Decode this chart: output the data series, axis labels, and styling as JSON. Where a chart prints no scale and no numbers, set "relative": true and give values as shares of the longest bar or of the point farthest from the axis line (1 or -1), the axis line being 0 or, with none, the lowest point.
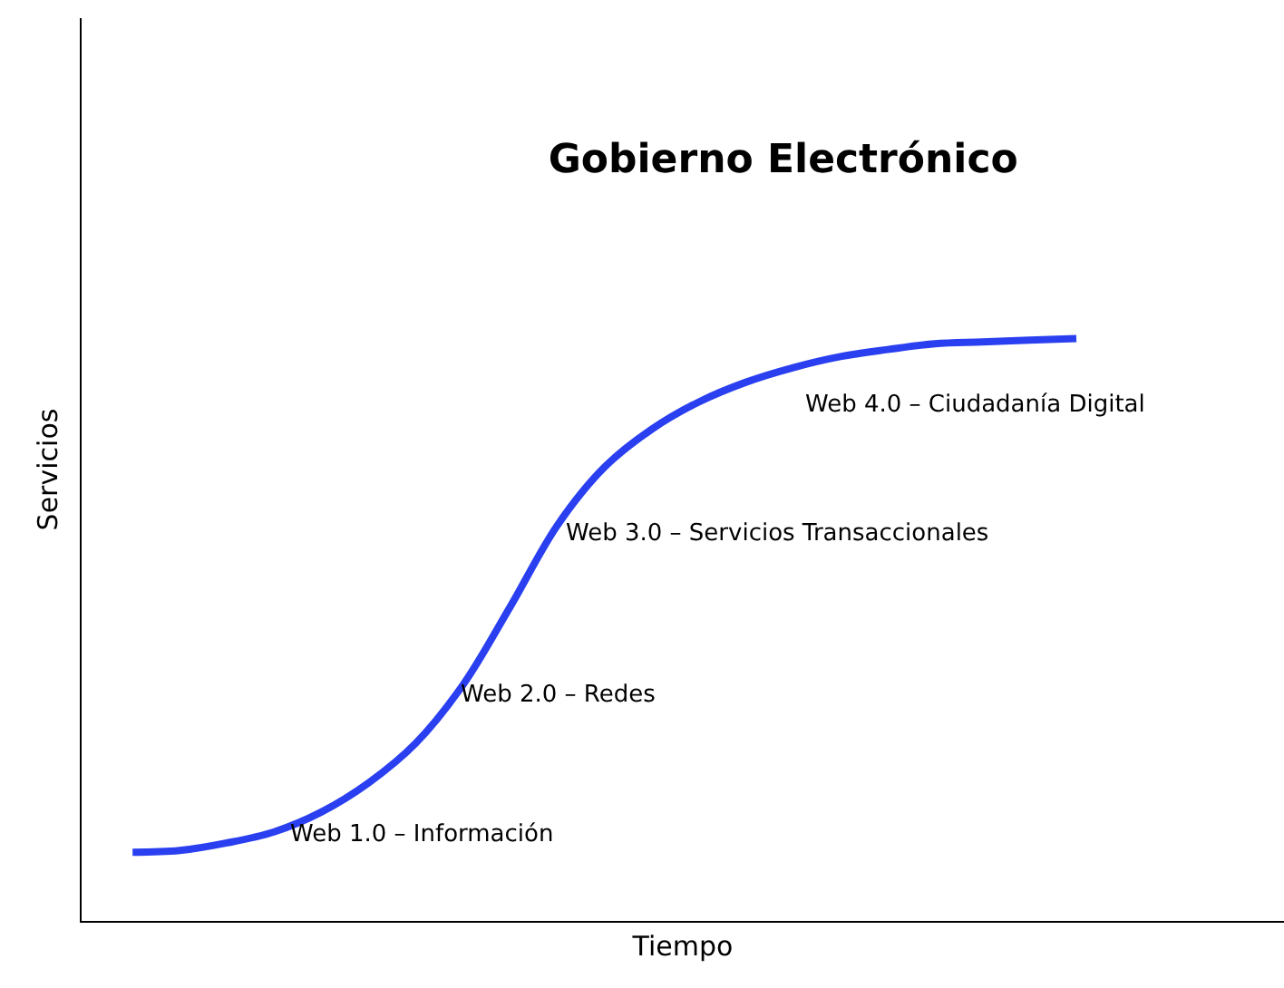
{
  "chart_data": {
    "type": "line",
    "title": "Gobierno Electrónico",
    "xlabel": "Tiempo",
    "ylabel": "Servicios",
    "relative": true,
    "categories": [
      null,
      null,
      null,
      null,
      null,
      null,
      null,
      null,
      null,
      null,
      null,
      null,
      null,
      null,
      null,
      null,
      null,
      null,
      null,
      null,
      null
    ],
    "series": [
      {
        "color": "#2a3ff0",
        "values": [
          0.118,
          0.121,
          0.134,
          0.153,
          0.187,
          0.237,
          0.305,
          0.405,
          0.539,
          0.679,
          0.779,
          0.844,
          0.891,
          0.925,
          0.95,
          0.969,
          0.981,
          0.991,
          0.994,
          0.997,
          1
        ]
      }
    ],
    "annotations": [
      "Web 1.0 – Información",
      "Web 2.0 – Redes",
      "Web 3.0 – Servicios Transaccionales",
      "Web 4.0 – Ciudadanía Digital"
    ],
    "marker": "none",
    "line_style": "solid"
  }
}
